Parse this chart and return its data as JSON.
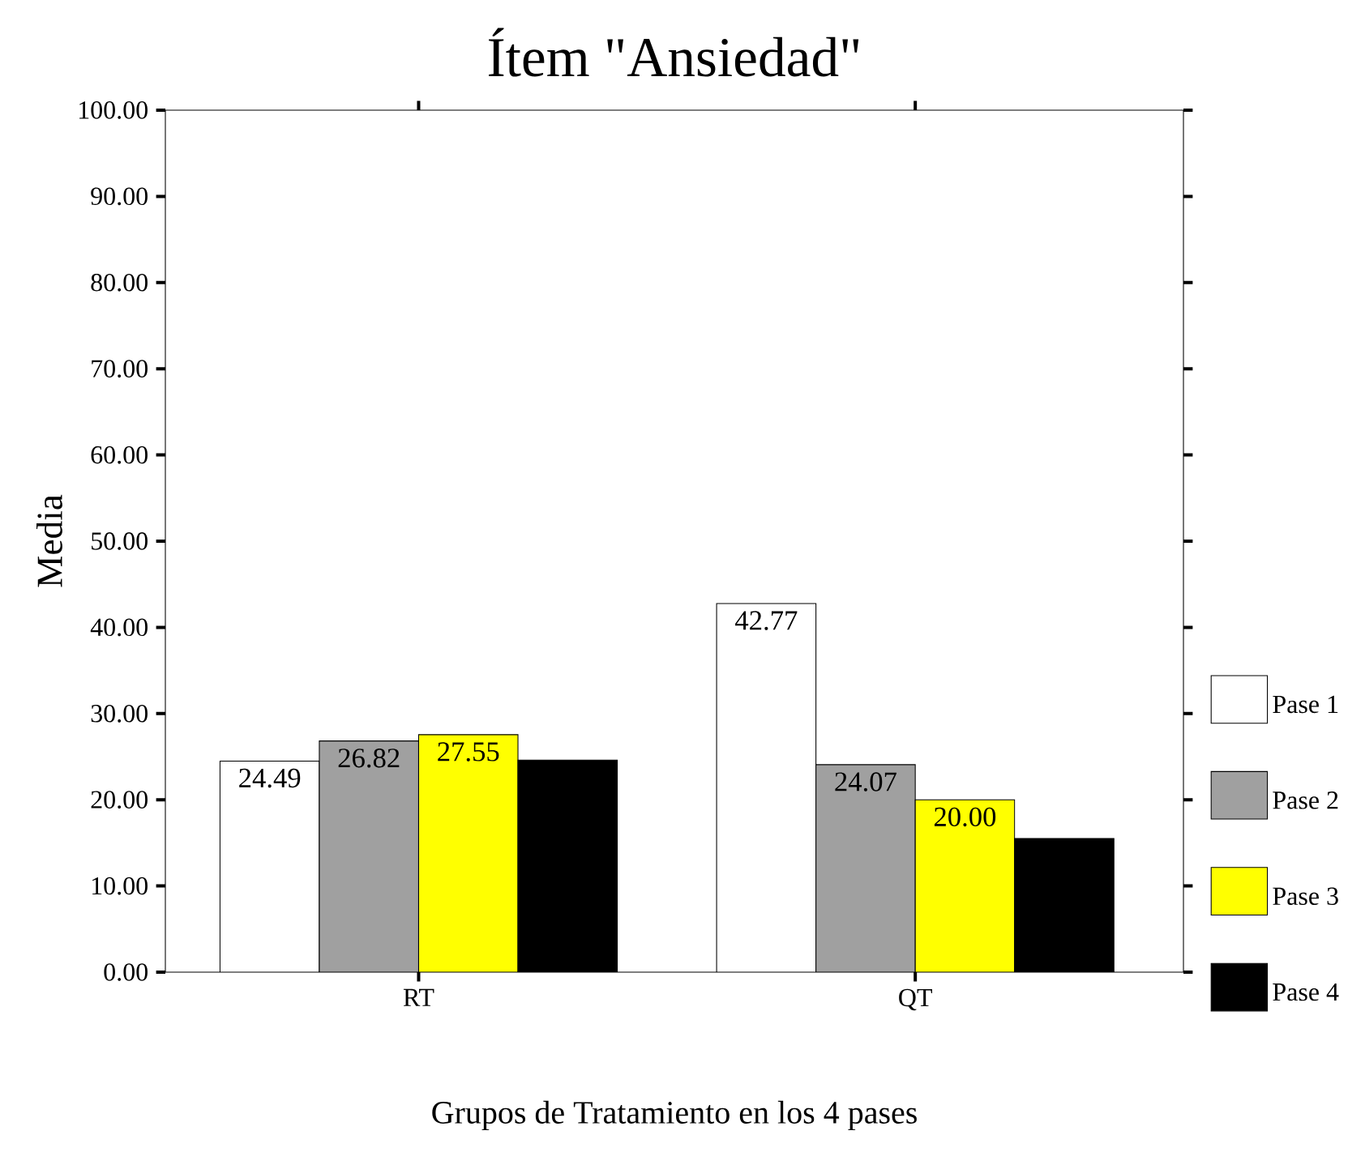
{
  "chart_data": {
    "type": "bar",
    "title": "Ítem \"Ansiedad\"",
    "xlabel": "Grupos de Tratamiento en los 4 pases",
    "ylabel": "Media",
    "categories": [
      "RT",
      "QT"
    ],
    "series": [
      {
        "name": "Pase 1",
        "color": "#ffffff",
        "values": [
          24.49,
          42.77
        ],
        "value_labels": [
          "24.49",
          "42.77"
        ]
      },
      {
        "name": "Pase 2",
        "color": "#a0a0a0",
        "values": [
          26.82,
          24.07
        ],
        "value_labels": [
          "26.82",
          "24.07"
        ]
      },
      {
        "name": "Pase 3",
        "color": "#ffff00",
        "values": [
          27.55,
          20.0
        ],
        "value_labels": [
          "27.55",
          "20.00"
        ]
      },
      {
        "name": "Pase 4",
        "color": "#000000",
        "values": [
          24.6,
          15.5
        ],
        "value_labels": [
          null,
          null
        ]
      }
    ],
    "ylim": [
      0,
      100
    ],
    "yticks": [
      {
        "value": 0,
        "label": "0.00"
      },
      {
        "value": 10,
        "label": "10.00"
      },
      {
        "value": 20,
        "label": "20.00"
      },
      {
        "value": 30,
        "label": "30.00"
      },
      {
        "value": 40,
        "label": "40.00"
      },
      {
        "value": 50,
        "label": "50.00"
      },
      {
        "value": 60,
        "label": "60.00"
      },
      {
        "value": 70,
        "label": "70.00"
      },
      {
        "value": 80,
        "label": "80.00"
      },
      {
        "value": 90,
        "label": "90.00"
      },
      {
        "value": 100,
        "label": "100.00"
      }
    ],
    "legend": "right",
    "grid": false
  }
}
